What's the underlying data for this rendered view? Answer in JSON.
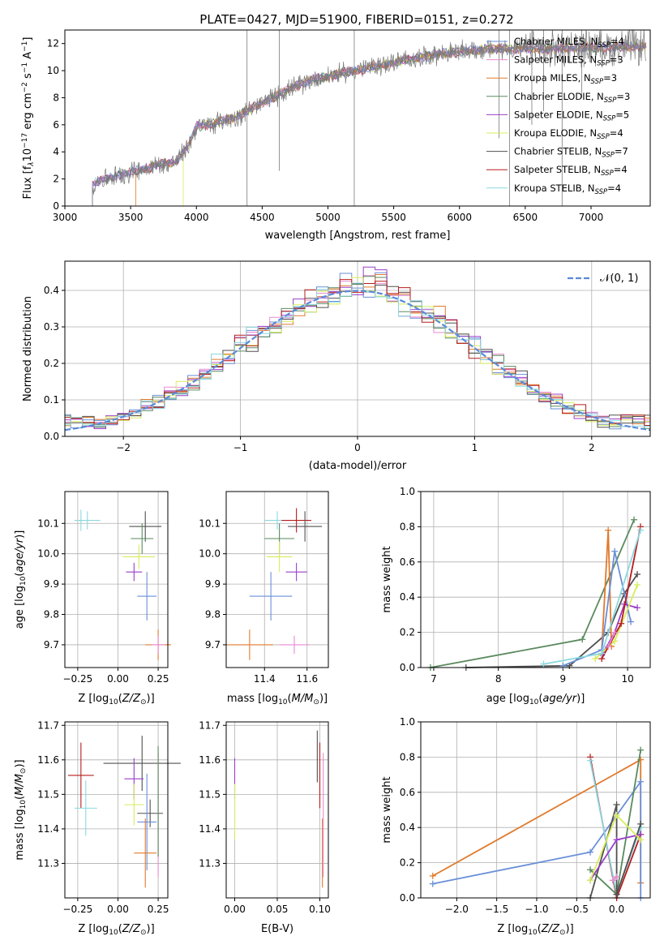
{
  "series_styles": [
    {
      "name": "Chabrier MILES, N_SSP=4",
      "color": "#6a8fd8",
      "short": "Chabrier MILES",
      "nssp": "4"
    },
    {
      "name": "Salpeter MILES, N_SSP=3",
      "color": "#e88ad0",
      "short": "Salpeter MILES",
      "nssp": "3"
    },
    {
      "name": "Kroupa MILES, N_SSP=3",
      "color": "#e07a2c",
      "short": "Kroupa MILES",
      "nssp": "3"
    },
    {
      "name": "Chabrier ELODIE, N_SSP=3",
      "color": "#5a8a5e",
      "short": "Chabrier ELODIE",
      "nssp": "3"
    },
    {
      "name": "Salpeter ELODIE, N_SSP=5",
      "color": "#9a3fc8",
      "short": "Salpeter ELODIE",
      "nssp": "5"
    },
    {
      "name": "Kroupa ELODIE, N_SSP=4",
      "color": "#d8ec5a",
      "short": "Kroupa ELODIE",
      "nssp": "4"
    },
    {
      "name": "Chabrier STELIB, N_SSP=7",
      "color": "#505050",
      "short": "Chabrier STELIB",
      "nssp": "7"
    },
    {
      "name": "Salpeter STELIB, N_SSP=4",
      "color": "#b81c1c",
      "short": "Salpeter STELIB",
      "nssp": "4"
    },
    {
      "name": "Kroupa STELIB, N_SSP=4",
      "color": "#8ad8e0",
      "short": "Kroupa STELIB",
      "nssp": "4"
    }
  ],
  "chart_data": [
    {
      "type": "line",
      "title": "PLATE=0427, MJD=51900, FIBERID=0151, z=0.272",
      "xlabel": "wavelength [Angstrom, rest frame]",
      "ylabel_main": "Flux [f",
      "ylabel_tail": "10",
      "ylabel_exp1": "−17",
      "ylabel_mid": " erg cm",
      "ylabel_exp2": "−2",
      "ylabel_mid2": " s",
      "ylabel_exp3": "−1",
      "ylabel_end": " A",
      "ylabel_exp4": "−1",
      "ylabel_close": "]",
      "xlim": [
        3000,
        7450
      ],
      "ylim": [
        0,
        13
      ],
      "xticks": [
        3000,
        3500,
        4000,
        4500,
        5000,
        5500,
        6000,
        6500,
        7000
      ],
      "yticks": [
        0,
        2,
        4,
        6,
        8,
        10,
        12
      ],
      "spectrum_shape": [
        [
          3210,
          1.6
        ],
        [
          3300,
          2.0
        ],
        [
          3500,
          2.5
        ],
        [
          3700,
          3.0
        ],
        [
          3850,
          3.3
        ],
        [
          3950,
          4.6
        ],
        [
          4000,
          5.9
        ],
        [
          4100,
          6.0
        ],
        [
          4300,
          6.6
        ],
        [
          4500,
          7.6
        ],
        [
          4700,
          8.6
        ],
        [
          4900,
          9.4
        ],
        [
          5100,
          9.8
        ],
        [
          5300,
          10.2
        ],
        [
          5500,
          10.6
        ],
        [
          5700,
          11.0
        ],
        [
          5900,
          11.3
        ],
        [
          6100,
          11.5
        ],
        [
          6300,
          11.6
        ],
        [
          6500,
          11.6
        ],
        [
          6700,
          11.6
        ],
        [
          6900,
          11.7
        ],
        [
          7100,
          11.7
        ],
        [
          7300,
          11.8
        ],
        [
          7400,
          11.8
        ]
      ],
      "legend_placement": "right"
    },
    {
      "type": "bar",
      "xlabel": "(data-model)/error",
      "ylabel": "Normed distribution",
      "xlim": [
        -2.5,
        2.5
      ],
      "ylim": [
        0,
        0.48
      ],
      "xticks": [
        -2,
        -1,
        0,
        1,
        2
      ],
      "xtick_labels": [
        "−2",
        "−1",
        "0",
        "1",
        "2"
      ],
      "yticks": [
        0.0,
        0.1,
        0.2,
        0.3,
        0.4
      ],
      "ytick_labels": [
        "0.0",
        "0.1",
        "0.2",
        "0.3",
        "0.4"
      ],
      "bin_width": 0.1,
      "gaussian_label": "N(0,1)",
      "gaussian_color": "#5a8ad8",
      "legend_placement": "upper right"
    },
    {
      "type": "scatter",
      "xlabel": "Z [log10(Z/Z⊙)]",
      "ylabel": "age  [log10(age/yr)]",
      "xlim": [
        -0.33,
        0.31
      ],
      "ylim": [
        9.625,
        10.205
      ],
      "xticks": [
        -0.25,
        0.0,
        0.25
      ],
      "xtick_labels": [
        "−0.25",
        "0.00",
        "0.25"
      ],
      "yticks": [
        9.7,
        9.8,
        9.9,
        10.0,
        10.1
      ],
      "ytick_labels": [
        "9.7",
        "9.8",
        "9.9",
        "10.0",
        "10.1"
      ],
      "points": [
        {
          "s": 8,
          "x": -0.23,
          "y": 10.11,
          "xe": 0.03,
          "ye": 0.035
        },
        {
          "s": 6,
          "x": 0.17,
          "y": 10.09,
          "xe": 0.1,
          "ye": 0.05
        },
        {
          "s": 3,
          "x": 0.15,
          "y": 10.05,
          "xe": 0.07,
          "ye": 0.05
        },
        {
          "s": 5,
          "x": 0.13,
          "y": 9.99,
          "xe": 0.1,
          "ye": 0.04
        },
        {
          "s": 4,
          "x": 0.1,
          "y": 9.94,
          "xe": 0.05,
          "ye": 0.03
        },
        {
          "s": 0,
          "x": 0.18,
          "y": 9.86,
          "xe": 0.06,
          "ye": 0.08
        },
        {
          "s": 2,
          "x": 0.25,
          "y": 9.7,
          "xe": 0.08,
          "ye": 0.05
        },
        {
          "s": 1,
          "x": 0.25,
          "y": 9.7,
          "xe": 0.04,
          "ye": 0.03
        },
        {
          "s": 8,
          "x": -0.19,
          "y": 10.11,
          "xe": 0.08,
          "ye": 0.03
        }
      ]
    },
    {
      "type": "scatter",
      "xlabel": "mass [log10(M/M⊙)]",
      "ylabel": "",
      "xlim": [
        11.22,
        11.7
      ],
      "ylim": [
        9.625,
        10.205
      ],
      "xticks": [
        11.4,
        11.6
      ],
      "xtick_labels": [
        "11.4",
        "11.6"
      ],
      "yticks": [
        9.7,
        9.8,
        9.9,
        10.0,
        10.1
      ],
      "ytick_labels": [
        "9.7",
        "9.8",
        "9.9",
        "10.0",
        "10.1"
      ],
      "points": [
        {
          "s": 8,
          "x": 11.46,
          "y": 10.11,
          "xe": 0.06,
          "ye": 0.03
        },
        {
          "s": 7,
          "x": 11.55,
          "y": 10.11,
          "xe": 0.07,
          "ye": 0.04
        },
        {
          "s": 6,
          "x": 11.59,
          "y": 10.09,
          "xe": 0.08,
          "ye": 0.05
        },
        {
          "s": 3,
          "x": 11.47,
          "y": 10.05,
          "xe": 0.07,
          "ye": 0.05
        },
        {
          "s": 5,
          "x": 11.47,
          "y": 9.99,
          "xe": 0.06,
          "ye": 0.05
        },
        {
          "s": 4,
          "x": 11.55,
          "y": 9.94,
          "xe": 0.05,
          "ye": 0.03
        },
        {
          "s": 0,
          "x": 11.43,
          "y": 9.86,
          "xe": 0.1,
          "ye": 0.08
        },
        {
          "s": 2,
          "x": 11.33,
          "y": 9.7,
          "xe": 0.11,
          "ye": 0.05
        },
        {
          "s": 1,
          "x": 11.54,
          "y": 9.7,
          "xe": 0.07,
          "ye": 0.03
        }
      ]
    },
    {
      "type": "line",
      "xlabel": "age  [log10(age/yr)]",
      "ylabel": "mass weight",
      "xlim": [
        6.8,
        10.35
      ],
      "ylim": [
        0,
        1
      ],
      "xticks": [
        7,
        8,
        9,
        10
      ],
      "xtick_labels": [
        "7",
        "8",
        "9",
        "10"
      ],
      "yticks": [
        0.0,
        0.2,
        0.4,
        0.6,
        0.8,
        1.0
      ],
      "ytick_labels": [
        "0.0",
        "0.2",
        "0.4",
        "0.6",
        "0.8",
        "1.0"
      ],
      "lines": [
        {
          "s": 3,
          "pts": [
            [
              6.95,
              0.0
            ],
            [
              9.3,
              0.16
            ],
            [
              10.1,
              0.84
            ]
          ]
        },
        {
          "s": 6,
          "pts": [
            [
              7.5,
              0.0
            ],
            [
              9.1,
              0.01
            ],
            [
              9.7,
              0.2
            ],
            [
              9.95,
              0.42
            ],
            [
              10.15,
              0.53
            ]
          ]
        },
        {
          "s": 2,
          "pts": [
            [
              9.6,
              0.1
            ],
            [
              9.7,
              0.78
            ],
            [
              9.75,
              0.12
            ]
          ]
        },
        {
          "s": 0,
          "pts": [
            [
              9.0,
              0.01
            ],
            [
              9.6,
              0.1
            ],
            [
              9.8,
              0.66
            ],
            [
              10.05,
              0.26
            ]
          ]
        },
        {
          "s": 4,
          "pts": [
            [
              9.6,
              0.07
            ],
            [
              9.8,
              0.2
            ],
            [
              9.95,
              0.36
            ],
            [
              10.15,
              0.34
            ]
          ]
        },
        {
          "s": 5,
          "pts": [
            [
              9.5,
              0.05
            ],
            [
              9.8,
              0.15
            ],
            [
              10.15,
              0.47
            ]
          ]
        },
        {
          "s": 7,
          "pts": [
            [
              9.6,
              0.05
            ],
            [
              9.9,
              0.25
            ],
            [
              10.2,
              0.8
            ]
          ]
        },
        {
          "s": 8,
          "pts": [
            [
              8.7,
              0.02
            ],
            [
              9.6,
              0.08
            ],
            [
              10.2,
              0.78
            ]
          ]
        },
        {
          "s": 1,
          "pts": [
            [
              9.7,
              0.12
            ],
            [
              9.8,
              0.2
            ]
          ]
        }
      ]
    },
    {
      "type": "scatter",
      "xlabel": "Z [log10(Z/Z⊙)]",
      "ylabel": "mass [log10(M/M⊙)]",
      "xlim": [
        -0.33,
        0.31
      ],
      "ylim": [
        11.2,
        11.71
      ],
      "xticks": [
        -0.25,
        0.0,
        0.25
      ],
      "xtick_labels": [
        "−0.25",
        "0.00",
        "0.25"
      ],
      "yticks": [
        11.3,
        11.4,
        11.5,
        11.6,
        11.7
      ],
      "ytick_labels": [
        "11.3",
        "11.4",
        "11.5",
        "11.6",
        "11.7"
      ],
      "points": [
        {
          "s": 7,
          "x": -0.23,
          "y": 11.555,
          "xe": 0.08,
          "ye": 0.095
        },
        {
          "s": 6,
          "x": 0.15,
          "y": 11.59,
          "xe": 0.24,
          "ye": 0.08
        },
        {
          "s": 4,
          "x": 0.1,
          "y": 11.545,
          "xe": 0.06,
          "ye": 0.06
        },
        {
          "s": 5,
          "x": 0.1,
          "y": 11.47,
          "xe": 0.06,
          "ye": 0.06
        },
        {
          "s": 8,
          "x": -0.2,
          "y": 11.46,
          "xe": 0.07,
          "ye": 0.08
        },
        {
          "s": 6,
          "x": 0.2,
          "y": 11.445,
          "xe": 0.08,
          "ye": 0.04
        },
        {
          "s": 0,
          "x": 0.18,
          "y": 11.42,
          "xe": 0.06,
          "ye": 0.14
        },
        {
          "s": 2,
          "x": 0.17,
          "y": 11.33,
          "xe": 0.07,
          "ye": 0.1
        },
        {
          "s": 1,
          "x": 0.25,
          "y": 11.44,
          "xe": 0.0,
          "ye": 0.18
        },
        {
          "s": 3,
          "x": 0.25,
          "y": 11.48,
          "xe": 0.0,
          "ye": 0.16
        }
      ]
    },
    {
      "type": "scatter",
      "xlabel": "E(B-V)",
      "ylabel": "",
      "xlim": [
        -0.01,
        0.11
      ],
      "ylim": [
        11.2,
        11.71
      ],
      "xticks": [
        0.0,
        0.05,
        0.1
      ],
      "xtick_labels": [
        "0.00",
        "0.05",
        "0.10"
      ],
      "yticks": [
        11.3,
        11.4,
        11.5,
        11.6,
        11.7
      ],
      "ytick_labels": [
        "11.3",
        "11.4",
        "11.5",
        "11.6",
        "11.7"
      ],
      "points": [
        {
          "s": 4,
          "x": 0.0,
          "y": 11.545,
          "xe": 0.0,
          "ye": 0.06
        },
        {
          "s": 5,
          "x": 0.0,
          "y": 11.45,
          "xe": 0.0,
          "ye": 0.08
        },
        {
          "s": 6,
          "x": 0.097,
          "y": 11.61,
          "xe": 0.0,
          "ye": 0.075
        },
        {
          "s": 7,
          "x": 0.1,
          "y": 11.555,
          "xe": 0.0,
          "ye": 0.095
        },
        {
          "s": 2,
          "x": 0.103,
          "y": 11.33,
          "xe": 0.0,
          "ye": 0.1
        },
        {
          "s": 1,
          "x": 0.104,
          "y": 11.44,
          "xe": 0.0,
          "ye": 0.18
        }
      ]
    },
    {
      "type": "line",
      "xlabel": "Z [log10(Z/Z⊙)]",
      "ylabel": "mass weight",
      "xlim": [
        -2.45,
        0.42
      ],
      "ylim": [
        0,
        1
      ],
      "xticks": [
        -2.0,
        -1.5,
        -1.0,
        -0.5,
        0.0
      ],
      "xtick_labels": [
        "−2.0",
        "−1.5",
        "−1.0",
        "−0.5",
        "0.0"
      ],
      "yticks": [
        0.0,
        0.2,
        0.4,
        0.6,
        0.8,
        1.0
      ],
      "ytick_labels": [
        "0.0",
        "0.2",
        "0.4",
        "0.6",
        "0.8",
        "1.0"
      ],
      "lines": [
        {
          "s": 2,
          "pts": [
            [
              -2.3,
              0.125
            ],
            [
              0.3,
              0.785
            ],
            [
              0.3,
              0.085
            ]
          ]
        },
        {
          "s": 0,
          "pts": [
            [
              -2.3,
              0.08
            ],
            [
              -0.33,
              0.26
            ],
            [
              0.3,
              0.66
            ],
            [
              0.3,
              0.0
            ]
          ]
        },
        {
          "s": 7,
          "pts": [
            [
              -0.33,
              0.8
            ],
            [
              0.0,
              0.0
            ],
            [
              0.3,
              0.36
            ]
          ]
        },
        {
          "s": 8,
          "pts": [
            [
              -0.33,
              0.78
            ],
            [
              0.0,
              0.02
            ],
            [
              0.3,
              0.4
            ]
          ]
        },
        {
          "s": 3,
          "pts": [
            [
              -0.33,
              0.16
            ],
            [
              0.0,
              0.02
            ],
            [
              0.3,
              0.84
            ]
          ]
        },
        {
          "s": 6,
          "pts": [
            [
              -0.33,
              0.0
            ],
            [
              0.0,
              0.53
            ],
            [
              0.0,
              0.02
            ],
            [
              0.3,
              0.42
            ]
          ]
        },
        {
          "s": 4,
          "pts": [
            [
              -0.33,
              0.1
            ],
            [
              0.0,
              0.33
            ],
            [
              0.3,
              0.36
            ]
          ]
        },
        {
          "s": 5,
          "pts": [
            [
              -0.33,
              0.1
            ],
            [
              0.0,
              0.47
            ],
            [
              0.3,
              0.33
            ]
          ]
        },
        {
          "s": 1,
          "pts": [
            [
              -0.05,
              0.1
            ],
            [
              0.0,
              0.12
            ]
          ]
        }
      ]
    }
  ]
}
